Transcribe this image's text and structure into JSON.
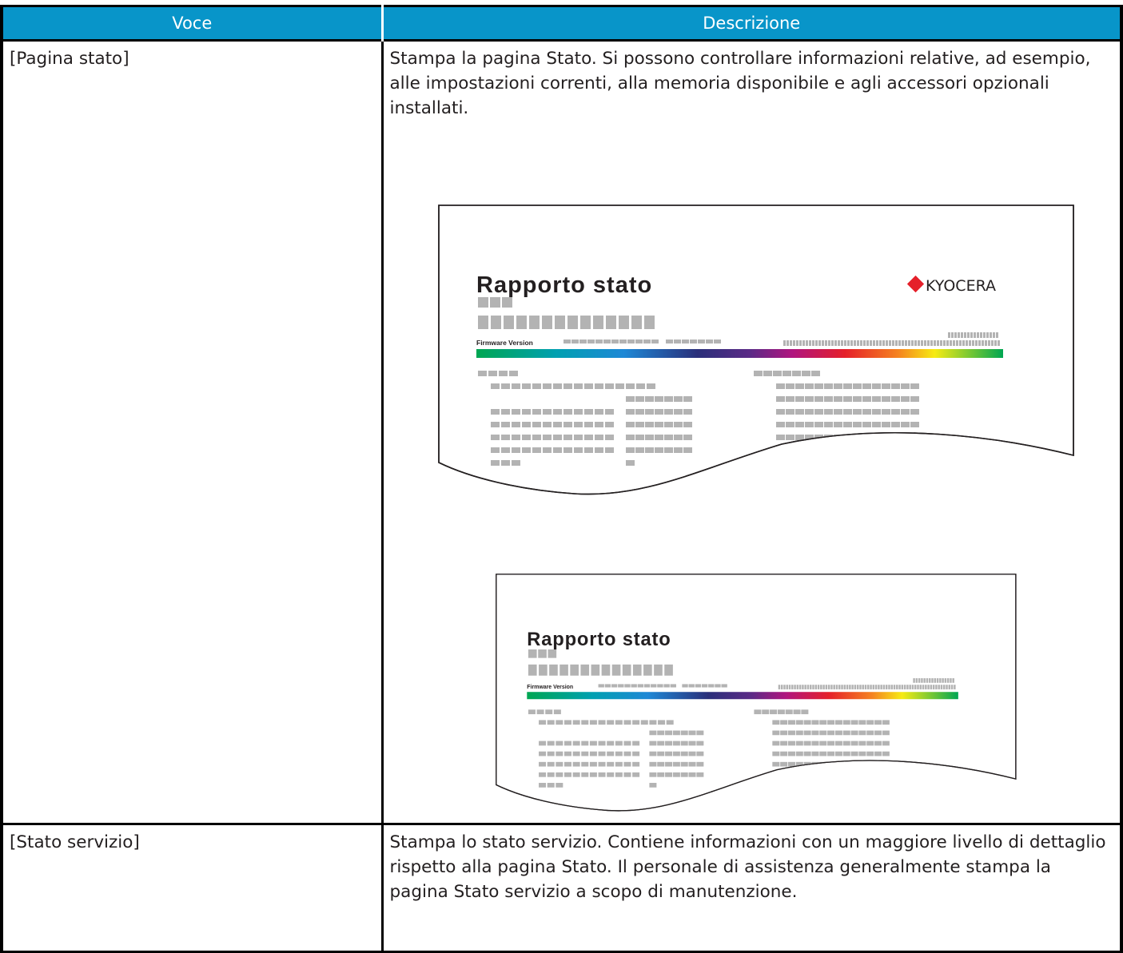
{
  "table": {
    "header": [
      "Voce",
      "Descrizione"
    ],
    "rows": [
      {
        "item": "[Pagina stato]",
        "description": "Stampa la pagina Stato. Si possono controllare informazioni relative, ad esempio, alle impostazioni correnti, alla memoria disponibile e agli accessori opzionali installati."
      },
      {
        "item": "[Stato servizio]",
        "description": "Stampa lo stato servizio. Contiene informazioni con un maggiore livello di dettaglio rispetto alla pagina Stato. Il personale di assistenza generalmente stampa la pagina Stato servizio a scopo di manutenzione."
      }
    ]
  },
  "illustrations": [
    {
      "title": "Rapporto stato",
      "logo": "KYOCERA",
      "label": "Firmware Version"
    },
    {
      "title": "Rapporto stato",
      "label": "Firmware Version"
    }
  ]
}
